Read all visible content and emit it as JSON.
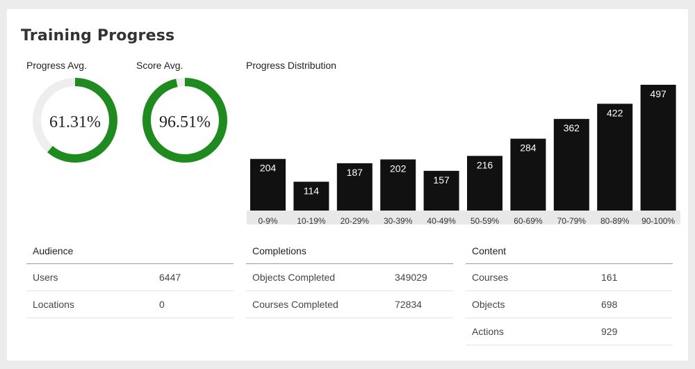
{
  "panel": {
    "title": "Training Progress"
  },
  "progress_avg": {
    "label": "Progress Avg.",
    "value_text": "61.31%",
    "percent": 61.31,
    "color": "#1f8a1f"
  },
  "score_avg": {
    "label": "Score Avg.",
    "value_text": "96.51%",
    "percent": 96.51,
    "color": "#1f8a1f"
  },
  "chart_data": {
    "type": "bar",
    "title": "Progress Distribution",
    "categories": [
      "0-9%",
      "10-19%",
      "20-29%",
      "30-39%",
      "40-49%",
      "50-59%",
      "60-69%",
      "70-79%",
      "80-89%",
      "90-100%"
    ],
    "values": [
      204,
      114,
      187,
      202,
      157,
      216,
      284,
      362,
      422,
      497
    ],
    "ylim": [
      0,
      497
    ],
    "xlabel": "",
    "ylabel": "",
    "bar_color": "#111111",
    "axis_band_color": "#e8e8e8"
  },
  "audience": {
    "header": "Audience",
    "rows": [
      {
        "label": "Users",
        "value": "6447"
      },
      {
        "label": "Locations",
        "value": "0"
      }
    ]
  },
  "completions": {
    "header": "Completions",
    "rows": [
      {
        "label": "Objects Completed",
        "value": "349029"
      },
      {
        "label": "Courses Completed",
        "value": "72834"
      }
    ]
  },
  "content": {
    "header": "Content",
    "rows": [
      {
        "label": "Courses",
        "value": "161"
      },
      {
        "label": "Objects",
        "value": "698"
      },
      {
        "label": "Actions",
        "value": "929"
      }
    ]
  }
}
